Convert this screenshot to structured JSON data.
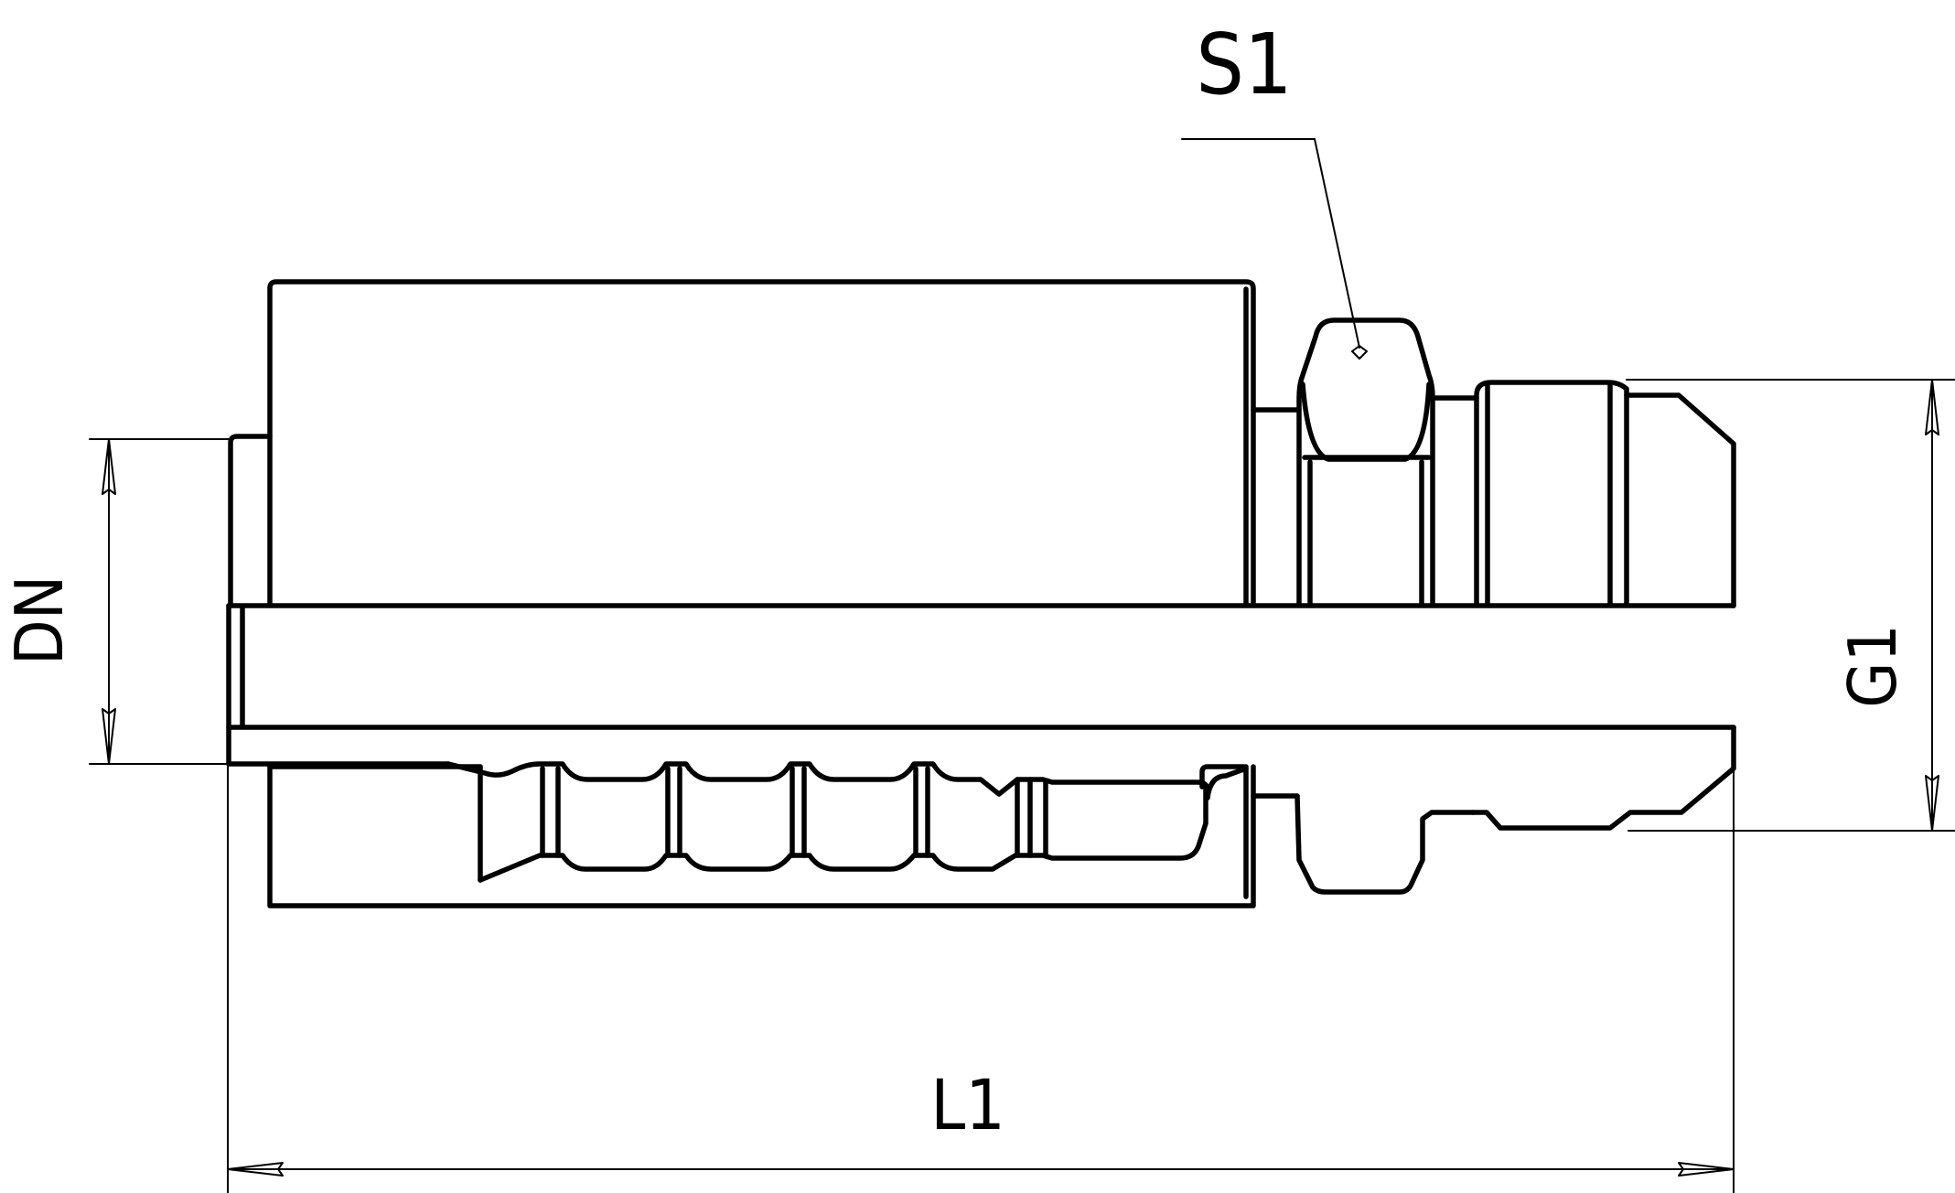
{
  "drawing": {
    "labels": {
      "s1": "S1",
      "dn": "DN",
      "g1": "G1",
      "l1": "L1"
    },
    "colors": {
      "line": "#000000",
      "background": "#ffffff"
    }
  }
}
